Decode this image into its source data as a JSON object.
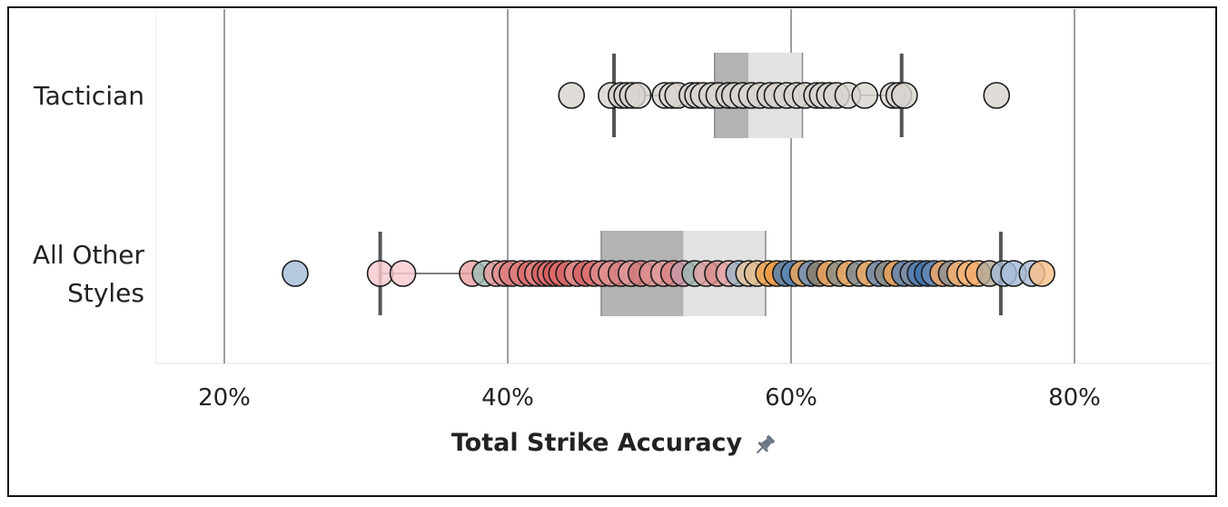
{
  "chart_data": {
    "type": "scatter",
    "subtype": "box-plot-with-strip",
    "orientation": "horizontal",
    "xlabel": "Total Strike Accuracy",
    "xlim": [
      0.15,
      0.9
    ],
    "x_ticks": [
      0.2,
      0.4,
      0.6,
      0.8
    ],
    "x_tick_labels": [
      "20%",
      "40%",
      "60%",
      "80%"
    ],
    "grid": "vertical gridlines at ticks",
    "categories": [
      "Tactician",
      "All Other Styles"
    ],
    "category_labels": [
      [
        "Tactician"
      ],
      [
        "All Other",
        "Styles"
      ]
    ],
    "boxes": [
      {
        "category": "Tactician",
        "whisker_low": 0.475,
        "q1": 0.546,
        "median": 0.57,
        "q3": 0.608,
        "whisker_high": 0.678
      },
      {
        "category": "All Other Styles",
        "whisker_low": 0.31,
        "q1": 0.466,
        "median": 0.524,
        "q3": 0.582,
        "whisker_high": 0.748
      }
    ],
    "series": [
      {
        "category": "Tactician",
        "points": [
          {
            "x": 0.445,
            "color": "#d9d4d0"
          },
          {
            "x": 0.473,
            "color": "#d9d4d0"
          },
          {
            "x": 0.48,
            "color": "#d9d4d0"
          },
          {
            "x": 0.484,
            "color": "#d9d4d0"
          },
          {
            "x": 0.488,
            "color": "#d9d4d0"
          },
          {
            "x": 0.492,
            "color": "#d9d4d0"
          },
          {
            "x": 0.511,
            "color": "#d9d4d0"
          },
          {
            "x": 0.516,
            "color": "#d9d4d0"
          },
          {
            "x": 0.52,
            "color": "#d9d4d0"
          },
          {
            "x": 0.53,
            "color": "#d9d4d0"
          },
          {
            "x": 0.534,
            "color": "#d9d4d0"
          },
          {
            "x": 0.538,
            "color": "#d9d4d0"
          },
          {
            "x": 0.544,
            "color": "#d9d4d0"
          },
          {
            "x": 0.549,
            "color": "#d9d4d0"
          },
          {
            "x": 0.556,
            "color": "#d9d4d0"
          },
          {
            "x": 0.56,
            "color": "#d9d4d0"
          },
          {
            "x": 0.566,
            "color": "#d9d4d0"
          },
          {
            "x": 0.572,
            "color": "#d9d4d0"
          },
          {
            "x": 0.578,
            "color": "#d9d4d0"
          },
          {
            "x": 0.585,
            "color": "#d9d4d0"
          },
          {
            "x": 0.59,
            "color": "#d9d4d0"
          },
          {
            "x": 0.597,
            "color": "#d9d4d0"
          },
          {
            "x": 0.604,
            "color": "#d9d4d0"
          },
          {
            "x": 0.61,
            "color": "#d9d4d0"
          },
          {
            "x": 0.618,
            "color": "#d9d4d0"
          },
          {
            "x": 0.622,
            "color": "#d9d4d0"
          },
          {
            "x": 0.627,
            "color": "#d9d4d0"
          },
          {
            "x": 0.632,
            "color": "#d9d4d0"
          },
          {
            "x": 0.64,
            "color": "#d9d4d0"
          },
          {
            "x": 0.652,
            "color": "#d9d4d0"
          },
          {
            "x": 0.672,
            "color": "#d9d4d0"
          },
          {
            "x": 0.676,
            "color": "#d9d4d0"
          },
          {
            "x": 0.68,
            "color": "#d9d4d0"
          },
          {
            "x": 0.745,
            "color": "#d9d4d0"
          }
        ]
      },
      {
        "category": "All Other Styles",
        "points": [
          {
            "x": 0.25,
            "color": "#a6bcd8"
          },
          {
            "x": 0.31,
            "color": "#f9c9cf"
          },
          {
            "x": 0.326,
            "color": "#f9c9cf"
          },
          {
            "x": 0.375,
            "color": "#eaa4a4"
          },
          {
            "x": 0.384,
            "color": "#9fbcb4"
          },
          {
            "x": 0.392,
            "color": "#e8a0a0"
          },
          {
            "x": 0.398,
            "color": "#e08f8f"
          },
          {
            "x": 0.403,
            "color": "#dc7c7c"
          },
          {
            "x": 0.41,
            "color": "#e07d7d"
          },
          {
            "x": 0.416,
            "color": "#d96a6a"
          },
          {
            "x": 0.421,
            "color": "#e48585"
          },
          {
            "x": 0.426,
            "color": "#d45f5f"
          },
          {
            "x": 0.43,
            "color": "#e27474"
          },
          {
            "x": 0.434,
            "color": "#d65c5c"
          },
          {
            "x": 0.438,
            "color": "#e06b6b"
          },
          {
            "x": 0.443,
            "color": "#d46868"
          },
          {
            "x": 0.449,
            "color": "#e58d8d"
          },
          {
            "x": 0.455,
            "color": "#d36262"
          },
          {
            "x": 0.461,
            "color": "#e07070"
          },
          {
            "x": 0.467,
            "color": "#dc8a8a"
          },
          {
            "x": 0.473,
            "color": "#e49090"
          },
          {
            "x": 0.48,
            "color": "#d88080"
          },
          {
            "x": 0.487,
            "color": "#e19a9a"
          },
          {
            "x": 0.494,
            "color": "#d27878"
          },
          {
            "x": 0.502,
            "color": "#df9292"
          },
          {
            "x": 0.51,
            "color": "#e49c9c"
          },
          {
            "x": 0.517,
            "color": "#d88484"
          },
          {
            "x": 0.524,
            "color": "#c99aa8"
          },
          {
            "x": 0.532,
            "color": "#9fb8b2"
          },
          {
            "x": 0.54,
            "color": "#e0a3a3"
          },
          {
            "x": 0.548,
            "color": "#d98c8c"
          },
          {
            "x": 0.556,
            "color": "#e7acac"
          },
          {
            "x": 0.563,
            "color": "#9fb5c8"
          },
          {
            "x": 0.57,
            "color": "#e9c7a2"
          },
          {
            "x": 0.576,
            "color": "#e0c094"
          },
          {
            "x": 0.584,
            "color": "#f0a552"
          },
          {
            "x": 0.59,
            "color": "#ef9a42"
          },
          {
            "x": 0.596,
            "color": "#4f7fb0"
          },
          {
            "x": 0.602,
            "color": "#5a86b5"
          },
          {
            "x": 0.608,
            "color": "#f2a65a"
          },
          {
            "x": 0.614,
            "color": "#6a8fb8"
          },
          {
            "x": 0.62,
            "color": "#8a7f6a"
          },
          {
            "x": 0.627,
            "color": "#f0a25a"
          },
          {
            "x": 0.634,
            "color": "#8a8f85"
          },
          {
            "x": 0.641,
            "color": "#f3a962"
          },
          {
            "x": 0.648,
            "color": "#7b8a92"
          },
          {
            "x": 0.655,
            "color": "#f4ac65"
          },
          {
            "x": 0.662,
            "color": "#6b8ab0"
          },
          {
            "x": 0.668,
            "color": "#8c8c84"
          },
          {
            "x": 0.674,
            "color": "#f0a458"
          },
          {
            "x": 0.68,
            "color": "#5a83b3"
          },
          {
            "x": 0.686,
            "color": "#7e8fa2"
          },
          {
            "x": 0.691,
            "color": "#4e7db2"
          },
          {
            "x": 0.696,
            "color": "#3f73ad"
          },
          {
            "x": 0.701,
            "color": "#6a8ab6"
          },
          {
            "x": 0.707,
            "color": "#f3aa66"
          },
          {
            "x": 0.713,
            "color": "#8c8f92"
          },
          {
            "x": 0.719,
            "color": "#f6b170"
          },
          {
            "x": 0.726,
            "color": "#f7b575"
          },
          {
            "x": 0.732,
            "color": "#f5ad6b"
          },
          {
            "x": 0.74,
            "color": "#b3a99a"
          },
          {
            "x": 0.75,
            "color": "#a6bcd8"
          },
          {
            "x": 0.757,
            "color": "#a6bcd8"
          },
          {
            "x": 0.77,
            "color": "#a8bbd4"
          },
          {
            "x": 0.777,
            "color": "#f9c08a"
          }
        ]
      }
    ]
  },
  "colors": {
    "box_lower": "#b3b3b3",
    "box_upper": "#e2e2e2",
    "whisker": "#555555",
    "gridline": "#6a6a6a",
    "pin_icon": "#6b7685"
  },
  "icons": {
    "pin": "pin-icon"
  }
}
